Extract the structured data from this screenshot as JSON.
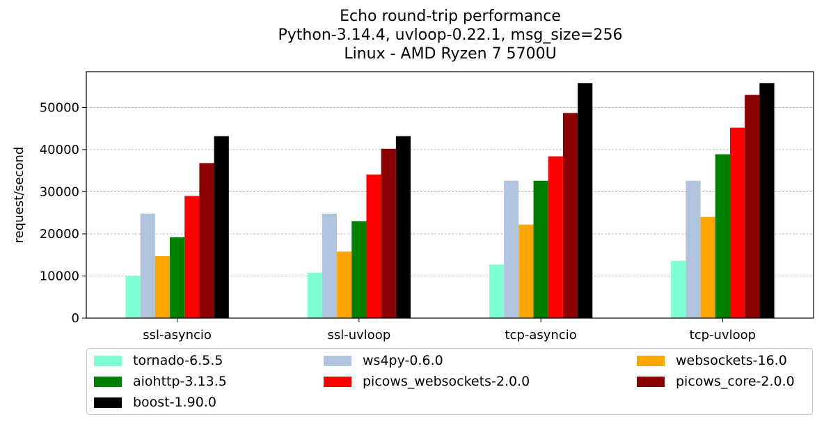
{
  "chart_data": {
    "type": "bar",
    "title_lines": [
      "Echo round-trip performance",
      "Python-3.14.4, uvloop-0.22.1, msg_size=256",
      "Linux - AMD Ryzen 7 5700U"
    ],
    "xlabel": "",
    "ylabel": "request/second",
    "ylim": [
      0,
      58500
    ],
    "yticks": [
      0,
      10000,
      20000,
      30000,
      40000,
      50000
    ],
    "ytick_labels": [
      "0",
      "10000",
      "20000",
      "30000",
      "40000",
      "50000"
    ],
    "grid": "y dashed",
    "legend_position": "below",
    "categories": [
      "ssl-asyncio",
      "ssl-uvloop",
      "tcp-asyncio",
      "tcp-uvloop"
    ],
    "series": [
      {
        "name": "tornado-6.5.5",
        "color": "#7fffd4",
        "values": [
          10000,
          10800,
          12700,
          13600
        ]
      },
      {
        "name": "ws4py-0.6.0",
        "color": "#b0c4de",
        "values": [
          24800,
          24800,
          32600,
          32600
        ]
      },
      {
        "name": "websockets-16.0",
        "color": "#ffa500",
        "values": [
          14700,
          15800,
          22200,
          24000
        ]
      },
      {
        "name": "aiohttp-3.13.5",
        "color": "#008000",
        "values": [
          19200,
          23000,
          32600,
          38900
        ]
      },
      {
        "name": "picows_websockets-2.0.0",
        "color": "#ff0000",
        "values": [
          29000,
          34100,
          38400,
          45200
        ]
      },
      {
        "name": "picows_core-2.0.0",
        "color": "#8b0000",
        "values": [
          36800,
          40200,
          48700,
          53000
        ]
      },
      {
        "name": "boost-1.90.0",
        "color": "#000000",
        "values": [
          43200,
          43200,
          55800,
          55800
        ]
      }
    ]
  }
}
